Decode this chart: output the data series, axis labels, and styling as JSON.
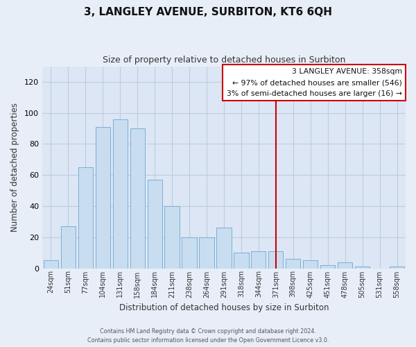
{
  "title": "3, LANGLEY AVENUE, SURBITON, KT6 6QH",
  "subtitle": "Size of property relative to detached houses in Surbiton",
  "xlabel": "Distribution of detached houses by size in Surbiton",
  "ylabel": "Number of detached properties",
  "bar_labels": [
    "24sqm",
    "51sqm",
    "77sqm",
    "104sqm",
    "131sqm",
    "158sqm",
    "184sqm",
    "211sqm",
    "238sqm",
    "264sqm",
    "291sqm",
    "318sqm",
    "344sqm",
    "371sqm",
    "398sqm",
    "425sqm",
    "451sqm",
    "478sqm",
    "505sqm",
    "531sqm",
    "558sqm"
  ],
  "bar_values": [
    5,
    27,
    65,
    91,
    96,
    90,
    57,
    40,
    20,
    20,
    26,
    10,
    11,
    11,
    6,
    5,
    2,
    4,
    1,
    0,
    1
  ],
  "bar_color": "#c8ddf0",
  "bar_edge_color": "#7bafd4",
  "marker_index": 13,
  "marker_color": "#cc0000",
  "ylim": [
    0,
    130
  ],
  "yticks": [
    0,
    20,
    40,
    60,
    80,
    100,
    120
  ],
  "legend_title": "3 LANGLEY AVENUE: 358sqm",
  "legend_line1": "← 97% of detached houses are smaller (546)",
  "legend_line2": "3% of semi-detached houses are larger (16) →",
  "footer_line1": "Contains HM Land Registry data © Crown copyright and database right 2024.",
  "footer_line2": "Contains public sector information licensed under the Open Government Licence v3.0.",
  "background_color": "#e8eef8",
  "plot_bg_color": "#dce6f5",
  "grid_color": "#c0cce0"
}
